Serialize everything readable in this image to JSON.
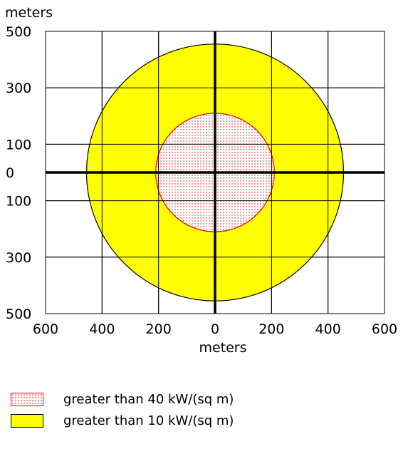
{
  "chart_data": {
    "type": "threat-zone",
    "x_unit_label": "meters",
    "y_unit_label": "meters",
    "xlim": [
      -600,
      600
    ],
    "ylim": [
      -500,
      500
    ],
    "x_ticks": [
      -600,
      -400,
      -200,
      0,
      200,
      400,
      600
    ],
    "x_tick_labels": [
      "600",
      "400",
      "200",
      "0",
      "200",
      "400",
      "600"
    ],
    "y_ticks": [
      500,
      300,
      100,
      0,
      -100,
      -300,
      -500
    ],
    "y_tick_labels": [
      "500",
      "300",
      "100",
      "0",
      "100",
      "300",
      "500"
    ],
    "x_grid": [
      -400,
      -200,
      200,
      400
    ],
    "y_grid": [
      300,
      100,
      -100,
      -300
    ],
    "zones": [
      {
        "label": "greater than 10 kW/(sq m)",
        "radius": 455,
        "fill": "#ffff00",
        "stroke": "#000000",
        "pattern": "solid"
      },
      {
        "label": "greater than 40 kW/(sq m)",
        "radius": 210,
        "fill": "#ffffff",
        "stroke": "#e00000",
        "pattern": "dotted"
      }
    ]
  },
  "legend": {
    "items": [
      {
        "label": "greater than 40 kW/(sq m)",
        "style": "dotted-red"
      },
      {
        "label": "greater than 10 kW/(sq m)",
        "style": "yellow"
      }
    ]
  }
}
